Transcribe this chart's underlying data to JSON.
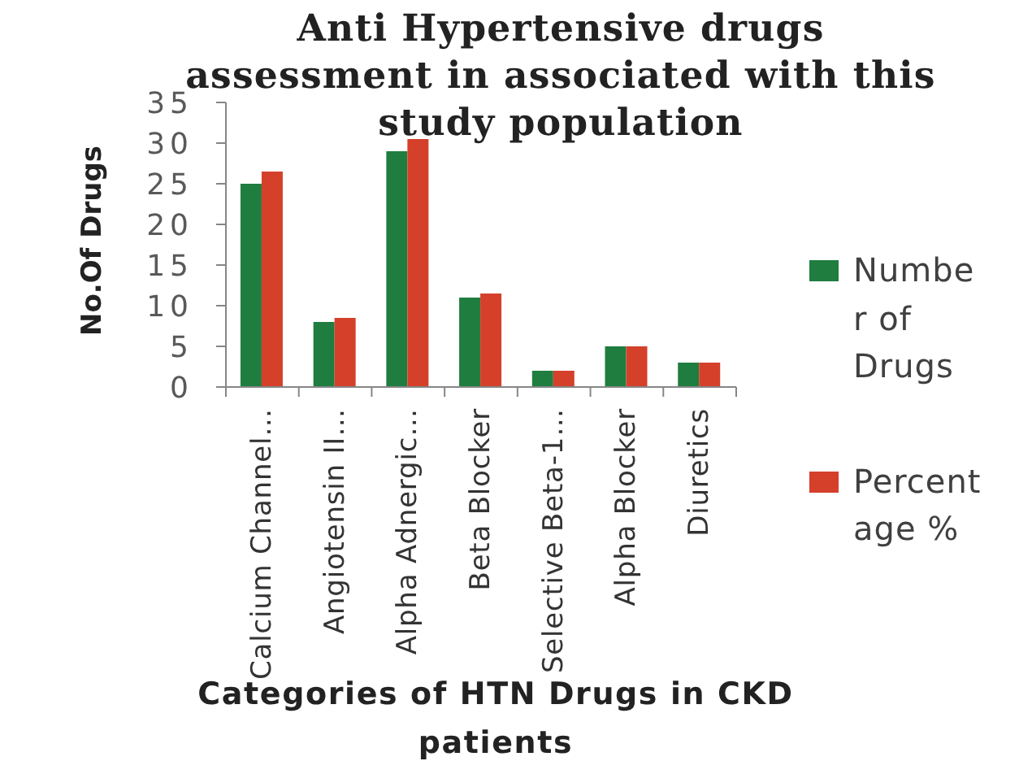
{
  "chart_data": {
    "type": "bar",
    "title": "Anti Hypertensive drugs assessment in associated with this study population",
    "xlabel": "Categories of HTN Drugs in CKD patients",
    "ylabel": "No.Of Drugs",
    "categories": [
      "Calcium Channel…",
      "Angiotensin II…",
      "Alpha Adnergic…",
      "Beta Blocker",
      "Selective Beta-1…",
      "Alpha Blocker",
      "Diuretics"
    ],
    "series": [
      {
        "name": "Number of Drugs",
        "color": "#1f7d3f",
        "values": [
          25,
          8,
          29,
          11,
          2,
          5,
          3
        ]
      },
      {
        "name": "Percentage %",
        "color": "#d4402a",
        "values": [
          26.5,
          8.5,
          30.5,
          11.5,
          2,
          5,
          3
        ]
      }
    ],
    "ylim": [
      0,
      35
    ],
    "yticks": [
      0,
      5,
      10,
      15,
      20,
      25,
      30,
      35
    ],
    "legend": "right"
  }
}
